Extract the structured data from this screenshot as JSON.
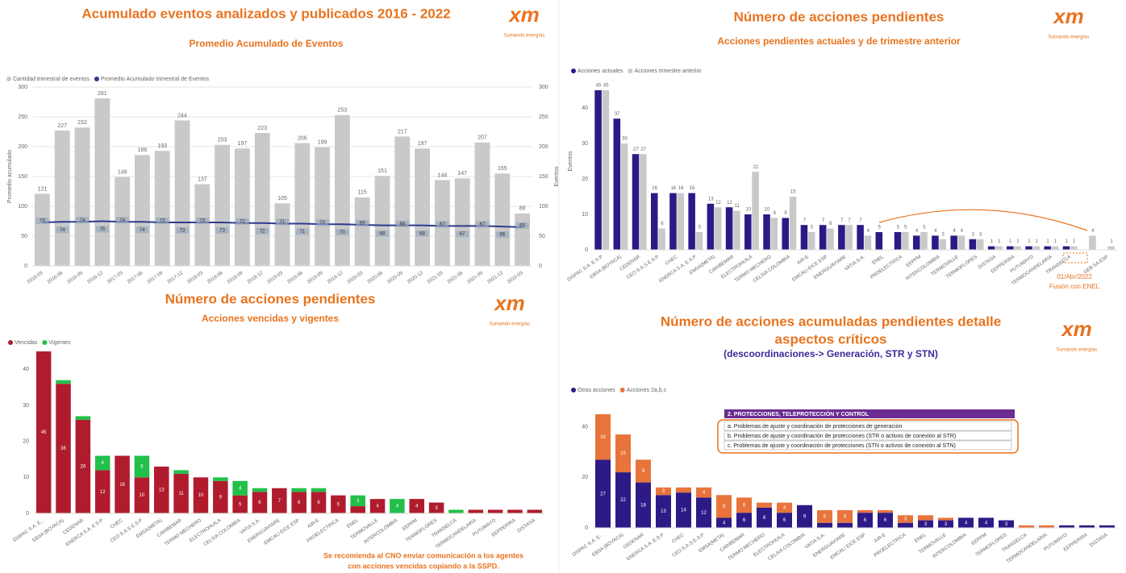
{
  "logo": {
    "text": "xm",
    "tagline": "Sumando energías"
  },
  "chart_data": [
    {
      "type": "combo",
      "title": "Acumulado eventos analizados y publicados 2016 - 2022",
      "subtitle": "Promedio Acumulado de Eventos",
      "ylabel": "Promedio acumulado",
      "y2label": "Eventos",
      "categories": [
        "2016-03",
        "2016-06",
        "2016-09",
        "2016-12",
        "2017-03",
        "2017-06",
        "2017-09",
        "2017-12",
        "2018-03",
        "2018-06",
        "2018-09",
        "2018-12",
        "2019-03",
        "2019-06",
        "2019-09",
        "2019-12",
        "2020-03",
        "2020-06",
        "2020-09",
        "2020-12",
        "2021-03",
        "2021-06",
        "2021-09",
        "2021-12",
        "2022-03"
      ],
      "series": [
        {
          "name": "Cantidad trimestral de eventos",
          "color": "#c9c9c9",
          "axis": "y2",
          "values": [
            121,
            227,
            232,
            281,
            149,
            186,
            193,
            244,
            137,
            203,
            197,
            223,
            105,
            206,
            199,
            253,
            115,
            151,
            217,
            197,
            144,
            147,
            207,
            155,
            88
          ]
        },
        {
          "name": "Promedio Acumulado trimestral de Eventos",
          "color": "#2e3b8c",
          "values": [
            73,
            74,
            74,
            75,
            74,
            74,
            73,
            73,
            73,
            73,
            72,
            72,
            71,
            71,
            70,
            70,
            69,
            68,
            68,
            68,
            67,
            67,
            67,
            66,
            65
          ]
        }
      ],
      "ylim": [
        0,
        300
      ],
      "yticks": [
        0,
        50,
        100,
        150,
        200,
        250,
        300
      ],
      "y2lim": [
        0,
        300
      ],
      "y2ticks": [
        0,
        50,
        100,
        150,
        200,
        250,
        300
      ],
      "grid": true,
      "legend": "top-left"
    },
    {
      "type": "bar",
      "title": "Número de acciones pendientes",
      "subtitle": "Acciones pendientes actuales y de trimestre anterior",
      "ylabel": "Eventos",
      "categories": [
        "DISPAC S.A. E.S.P",
        "EBSA (BOYACA)",
        "CEDENAR",
        "CEO S.A.S E.S.P",
        "CHEC",
        "ENERCA S.A. E.S.P",
        "EMSA(META)",
        "CARIBEMAR",
        "ELECTROHUILA",
        "TERMO MECHERO",
        "CELSIA COLOMBIA",
        "AIR-E",
        "EMCALI EICE ESP",
        "ENERGUAVIARE",
        "VATIA S.A.",
        "ENEL",
        "PROELECTRICA",
        "EEPPM",
        "INTERCOLOMBIA",
        "TERMOVALLE",
        "TERMOFLORES",
        "DISTASA",
        "EEPPERIRA",
        "PUTUMAYO",
        "TERMOCANDELARIA",
        "TRANSELCA",
        null,
        "GEB SA ESP"
      ],
      "series": [
        {
          "name": "Acciones actuales",
          "color": "#2b1a86",
          "values": [
            45,
            37,
            27,
            16,
            16,
            16,
            13,
            12,
            10,
            10,
            9,
            7,
            7,
            7,
            7,
            5,
            5,
            4,
            4,
            4,
            3,
            1,
            1,
            1,
            1,
            1,
            null,
            null
          ]
        },
        {
          "name": "Acciones trimestre anterior",
          "color": "#c9c9c9",
          "values": [
            45,
            30,
            27,
            6,
            16,
            5,
            12,
            11,
            22,
            9,
            15,
            5,
            6,
            7,
            4,
            null,
            5,
            5,
            3,
            4,
            3,
            1,
            1,
            1,
            1,
            1,
            4,
            1
          ]
        }
      ],
      "ylim": [
        0,
        50
      ],
      "yticks": [
        0,
        10,
        20,
        30,
        40
      ],
      "legend": "top-left",
      "annotations": [
        "01/Abr/2022",
        "Fusión con ENEL"
      ]
    },
    {
      "type": "stacked_bar",
      "title": "Número de acciones pendientes",
      "subtitle": "Acciones vencidas y vigentes",
      "categories": [
        "DISPAC S.A. E...",
        "EBSA (BOYACA)",
        "CEDENAR",
        "ENERCA S.A. E.S.P",
        "CHEC",
        "CEO S.A.S E.S.P",
        "EMSA(META)",
        "CARIBEMAR",
        "TERMO MECHERO",
        "ELECTROHUILA",
        "CELSIA COLOMBIA",
        "VATIA S.A.",
        "ENERGUAVIARE",
        "EMCALI EICE ESP",
        "AIR-E",
        "PROELECTRICA",
        "ENEL",
        "TERMOVALLE",
        "INTERCOLOMBIA",
        "EEPPM",
        "TERMOFLORES",
        "TRANSELCA",
        "TERMOCANDELARIA",
        "PUTUMAYO",
        "EEPPERIRA",
        "DISTASA"
      ],
      "series": [
        {
          "name": "Vencidas",
          "color": "#b01c2e",
          "values": [
            45,
            36,
            26,
            12,
            16,
            10,
            13,
            11,
            10,
            9,
            5,
            6,
            7,
            6,
            6,
            5,
            2,
            4,
            0,
            4,
            3,
            0,
            1,
            1,
            1,
            1
          ]
        },
        {
          "name": "Vigentes",
          "color": "#22c04a",
          "values": [
            0,
            1,
            1,
            4,
            0,
            6,
            0,
            1,
            0,
            1,
            4,
            1,
            0,
            1,
            1,
            0,
            3,
            0,
            4,
            0,
            0,
            1,
            0,
            0,
            0,
            0
          ]
        }
      ],
      "ylim": [
        0,
        45
      ],
      "yticks": [
        0,
        10,
        20,
        30,
        40
      ],
      "legend": "top-left",
      "note": [
        "Se recomienda al CNO enviar comunicación a los agentes",
        "con acciones vencidas copiando a la SSPD."
      ]
    },
    {
      "type": "stacked_bar",
      "title": [
        "Número de acciones acumuladas pendientes detalle",
        "aspectos críticos"
      ],
      "subtitle": "(descoordinaciones-> Generación, STR y STN)",
      "categories": [
        "DISPAC S.A. E...",
        "EBSA (BOYACA)",
        "CEDENAR",
        "ENERCA S.A. E.S.P",
        "CHEC",
        "CEO S.A.S E.S.P",
        "EMSA(META)",
        "CARIBEMAR",
        "TERMO MECHERO",
        "ELECTROHUILA",
        "CELSIA COLOMBIA",
        "VATIA S.A.",
        "ENERGUAVIARE",
        "EMCALI EICE ESP",
        "AIR-E",
        "PROELECTRICA",
        "ENEL",
        "TERMOVALLE",
        "INTERCOLOMBIA",
        "EEPPM",
        "TERMOFLORES",
        "TRANSELCA",
        "TERMOCANDELARIA",
        "PUTUMAYO",
        "EEPPERIRA",
        "DISTASA"
      ],
      "series": [
        {
          "name": "Otras acciones",
          "color": "#2e1a87",
          "values": [
            27,
            22,
            18,
            13,
            14,
            12,
            4,
            6,
            8,
            6,
            9,
            2,
            2,
            6,
            6,
            2,
            3,
            3,
            4,
            4,
            3,
            0,
            0,
            1,
            1,
            1
          ]
        },
        {
          "name": "Acciones 2a,b,c",
          "color": "#e8743b",
          "values": [
            18,
            15,
            9,
            3,
            2,
            4,
            9,
            6,
            2,
            4,
            0,
            5,
            5,
            1,
            1,
            3,
            2,
            1,
            0,
            0,
            0,
            1,
            1,
            0,
            0,
            0
          ]
        }
      ],
      "ylim": [
        0,
        45
      ],
      "yticks": [
        0,
        20,
        40
      ],
      "legend": "top-left",
      "info_box": {
        "title": "2. PROTECCIONES, TELEPROTECCIÓN Y CONTROL",
        "items": [
          "a. Problemas de ajuste y coordinación de protecciones de generación",
          "b. Problemas de ajuste y coordinación de protecciones (STR o activos de conexión al STR)",
          "c. Problemas de ajuste y coordinación de protecciones (STN o activos de conexión al STN)"
        ]
      }
    }
  ]
}
